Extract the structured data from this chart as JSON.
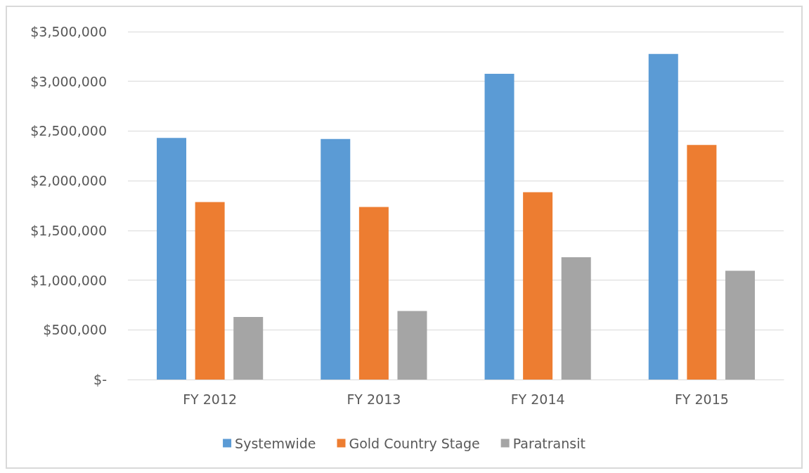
{
  "chart_data": {
    "type": "bar",
    "categories": [
      "FY 2012",
      "FY 2013",
      "FY 2014",
      "FY 2015"
    ],
    "series": [
      {
        "name": "Systemwide",
        "color": "#5b9bd5",
        "values": [
          2430000,
          2420000,
          3075000,
          3275000
        ]
      },
      {
        "name": "Gold Country Stage",
        "color": "#ed7d31",
        "values": [
          1785000,
          1735000,
          1885000,
          2360000
        ]
      },
      {
        "name": "Paratransit",
        "color": "#a5a5a5",
        "values": [
          630000,
          690000,
          1230000,
          1095000
        ]
      }
    ],
    "ylim": [
      0,
      3500000
    ],
    "yticks": [
      {
        "value": 0,
        "label": "$-"
      },
      {
        "value": 500000,
        "label": "$500,000"
      },
      {
        "value": 1000000,
        "label": "$1,000,000"
      },
      {
        "value": 1500000,
        "label": "$1,500,000"
      },
      {
        "value": 2000000,
        "label": "$2,000,000"
      },
      {
        "value": 2500000,
        "label": "$2,500,000"
      },
      {
        "value": 3000000,
        "label": "$3,000,000"
      },
      {
        "value": 3500000,
        "label": "$3,500,000"
      }
    ],
    "grid": "y",
    "legend": "bottom"
  }
}
